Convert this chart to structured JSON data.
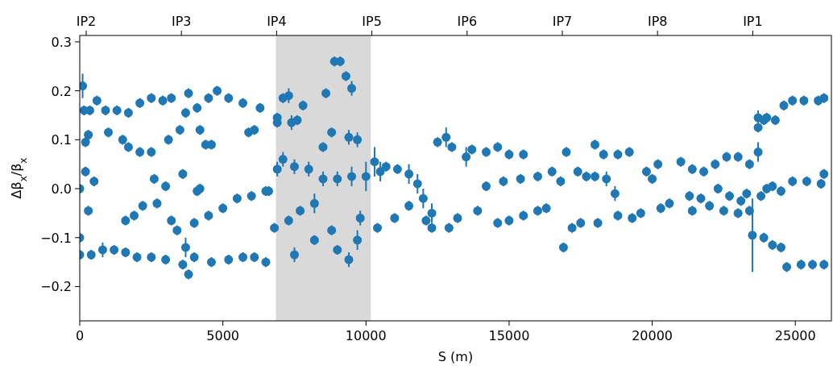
{
  "chart_data": {
    "type": "scatter",
    "xlabel": "S (m)",
    "ylabel": "Δβ$_{x}$/β$_{x}$",
    "xlim": [
      0,
      26260
    ],
    "xticks": [
      0,
      5000,
      10000,
      15000,
      20000,
      25000
    ],
    "ylim": [
      -0.27,
      0.313
    ],
    "yticks": [
      {
        "value": -0.2,
        "label": "−0.2"
      },
      {
        "value": -0.1,
        "label": "−0.1"
      },
      {
        "value": 0.0,
        "label": "0.0"
      },
      {
        "value": 0.1,
        "label": "0.1"
      },
      {
        "value": 0.2,
        "label": "0.2"
      },
      {
        "value": 0.3,
        "label": "0.3"
      }
    ],
    "annotations": [
      "IP2",
      "IP3",
      "IP4",
      "IP5",
      "IP6",
      "IP7",
      "IP8",
      "IP1"
    ],
    "bands": [
      {
        "axis": "x",
        "from": 6854,
        "to": 10169,
        "color": "#d9d9d9"
      }
    ],
    "grid": false,
    "marker": "circle",
    "series": [
      {
        "color": "#1f77b4",
        "x": [
          100,
          150,
          350,
          600,
          900,
          1300,
          1700,
          2100,
          2500,
          2900,
          3200,
          3800,
          4500,
          4800,
          5200,
          5700,
          6300,
          6900,
          7100,
          7300,
          7800,
          8600,
          8900,
          9100,
          9300,
          9500,
          200,
          300,
          1000,
          1500,
          1700,
          2100,
          2500,
          3100,
          3500,
          3700,
          4100,
          4200,
          4400,
          4600,
          5900,
          6100,
          6900,
          7400,
          7600,
          8500,
          8800,
          9400,
          9700,
          0,
          200,
          500,
          2600,
          3000,
          3600,
          4100,
          4200,
          6500,
          6900,
          7100,
          7500,
          8000,
          8500,
          9000,
          9500,
          10000,
          10500,
          300,
          1600,
          1900,
          2200,
          2700,
          3200,
          3400,
          3700,
          4000,
          4500,
          5000,
          5500,
          6000,
          6600,
          6800,
          7300,
          7700,
          8200,
          8800,
          9800,
          0,
          0,
          400,
          800,
          1200,
          1600,
          2000,
          2500,
          3000,
          3600,
          3800,
          4000,
          4600,
          5200,
          5700,
          6100,
          6500,
          7500,
          8200,
          9000,
          9400,
          9700,
          10300,
          10700,
          11100,
          11500,
          11800,
          12000,
          12300,
          12500,
          12800,
          13000,
          13200,
          12900,
          11000,
          10400,
          11500,
          12100,
          12300,
          13500,
          13700,
          14200,
          14600,
          15000,
          15500,
          13900,
          14200,
          14600,
          15000,
          15500,
          16000,
          16300,
          14800,
          15400,
          16000,
          16500,
          16800,
          17000,
          17200,
          17500,
          16900,
          17400,
          17700,
          18000,
          18300,
          18800,
          19200,
          18000,
          18400,
          18700,
          18100,
          18800,
          19300,
          19600,
          19800,
          20000,
          20200,
          20300,
          20600,
          21000,
          21400,
          21800,
          22200,
          22600,
          23000,
          23400,
          21300,
          21700,
          22300,
          22700,
          23100,
          23300,
          21400,
          22000,
          22500,
          23000,
          23400,
          23500,
          23700,
          23700,
          23700,
          23900,
          24000,
          24300,
          24600,
          24900,
          25300,
          25800,
          26000,
          23900,
          24200,
          24500,
          24700,
          25200,
          25600,
          26000,
          24200,
          24500,
          24900,
          25400,
          25900,
          26000,
          23800,
          24000
        ],
        "values": [
          0.21,
          0.16,
          0.16,
          0.18,
          0.16,
          0.16,
          0.155,
          0.175,
          0.185,
          0.18,
          0.185,
          0.195,
          0.185,
          0.2,
          0.185,
          0.175,
          0.165,
          0.145,
          0.185,
          0.19,
          0.17,
          0.195,
          0.26,
          0.26,
          0.23,
          0.205,
          0.095,
          0.11,
          0.115,
          0.1,
          0.085,
          0.075,
          0.075,
          0.1,
          0.12,
          0.155,
          0.165,
          0.12,
          0.09,
          0.09,
          0.115,
          0.12,
          0.135,
          0.135,
          0.14,
          0.085,
          0.115,
          0.105,
          0.1,
          0.0,
          0.035,
          0.015,
          0.02,
          0.005,
          0.03,
          -0.005,
          0.0,
          -0.005,
          0.04,
          0.06,
          0.045,
          0.04,
          0.02,
          0.02,
          0.025,
          0.025,
          0.035,
          -0.045,
          -0.065,
          -0.055,
          -0.035,
          -0.03,
          -0.065,
          -0.085,
          -0.12,
          -0.07,
          -0.055,
          -0.04,
          -0.02,
          -0.015,
          -0.005,
          -0.08,
          -0.065,
          -0.045,
          -0.03,
          -0.085,
          -0.06,
          -0.1,
          -0.135,
          -0.135,
          -0.125,
          -0.125,
          -0.13,
          -0.14,
          -0.14,
          -0.145,
          -0.155,
          -0.175,
          -0.14,
          -0.15,
          -0.145,
          -0.14,
          -0.14,
          -0.15,
          -0.135,
          -0.105,
          -0.125,
          -0.145,
          -0.105,
          0.055,
          0.045,
          0.04,
          0.03,
          0.01,
          -0.02,
          -0.05,
          0.095,
          0.105,
          0.085,
          -0.06,
          -0.08,
          -0.06,
          -0.08,
          -0.035,
          -0.065,
          -0.08,
          0.065,
          0.08,
          0.075,
          0.085,
          0.07,
          0.07,
          -0.045,
          0.005,
          -0.07,
          -0.065,
          -0.055,
          -0.045,
          -0.04,
          0.015,
          0.02,
          0.025,
          0.035,
          0.015,
          0.075,
          -0.08,
          -0.07,
          -0.12,
          0.035,
          0.025,
          0.09,
          0.07,
          0.07,
          0.075,
          0.025,
          0.02,
          -0.01,
          -0.07,
          -0.055,
          -0.06,
          -0.05,
          0.035,
          0.02,
          0.05,
          -0.04,
          -0.03,
          0.055,
          0.04,
          0.035,
          0.05,
          0.065,
          0.065,
          0.05,
          -0.015,
          -0.02,
          0.0,
          -0.015,
          -0.025,
          -0.01,
          -0.045,
          -0.035,
          -0.045,
          -0.05,
          -0.045,
          -0.095,
          0.145,
          0.125,
          0.075,
          0.14,
          0.145,
          0.14,
          0.17,
          0.18,
          0.18,
          0.18,
          0.185,
          -0.1,
          -0.115,
          -0.12,
          -0.16,
          -0.155,
          -0.155,
          -0.155,
          0.005,
          -0.005,
          0.015,
          0.015,
          0.01,
          0.03,
          -0.015,
          0.0
        ],
        "errors": [
          0.025,
          0.01,
          0.01,
          0.01,
          0.01,
          0.01,
          0.01,
          0.01,
          0.01,
          0.01,
          0.01,
          0.01,
          0.01,
          0.01,
          0.01,
          0.01,
          0.01,
          0.01,
          0.01,
          0.015,
          0.01,
          0.01,
          0.01,
          0.01,
          0.01,
          0.015,
          0.01,
          0.01,
          0.01,
          0.01,
          0.01,
          0.01,
          0.01,
          0.01,
          0.01,
          0.01,
          0.01,
          0.01,
          0.01,
          0.01,
          0.01,
          0.01,
          0.01,
          0.015,
          0.01,
          0.01,
          0.01,
          0.015,
          0.015,
          0.01,
          0.01,
          0.01,
          0.01,
          0.01,
          0.01,
          0.01,
          0.01,
          0.01,
          0.015,
          0.015,
          0.015,
          0.015,
          0.015,
          0.015,
          0.02,
          0.03,
          0.02,
          0.01,
          0.01,
          0.01,
          0.01,
          0.01,
          0.01,
          0.01,
          0.02,
          0.01,
          0.01,
          0.01,
          0.01,
          0.01,
          0.01,
          0.01,
          0.01,
          0.01,
          0.02,
          0.01,
          0.015,
          0.01,
          0.01,
          0.01,
          0.015,
          0.01,
          0.01,
          0.01,
          0.01,
          0.01,
          0.01,
          0.01,
          0.01,
          0.01,
          0.01,
          0.01,
          0.01,
          0.01,
          0.015,
          0.01,
          0.01,
          0.015,
          0.02,
          0.03,
          0.01,
          0.01,
          0.02,
          0.02,
          0.02,
          0.02,
          0.01,
          0.02,
          0.01,
          0.01,
          0.01,
          0.01,
          0.01,
          0.01,
          0.01,
          0.01,
          0.02,
          0.01,
          0.01,
          0.01,
          0.01,
          0.01,
          0.01,
          0.01,
          0.01,
          0.01,
          0.01,
          0.01,
          0.01,
          0.01,
          0.01,
          0.01,
          0.01,
          0.01,
          0.01,
          0.01,
          0.01,
          0.01,
          0.01,
          0.01,
          0.01,
          0.01,
          0.01,
          0.01,
          0.01,
          0.015,
          0.015,
          0.01,
          0.01,
          0.01,
          0.01,
          0.01,
          0.01,
          0.01,
          0.01,
          0.01,
          0.01,
          0.01,
          0.01,
          0.01,
          0.01,
          0.01,
          0.01,
          0.01,
          0.01,
          0.01,
          0.01,
          0.01,
          0.01,
          0.01,
          0.01,
          0.01,
          0.01,
          0.01,
          0.075,
          0.015,
          0.01,
          0.02,
          0.01,
          0.01,
          0.01,
          0.01,
          0.01,
          0.01,
          0.01,
          0.01,
          0.01,
          0.01,
          0.01,
          0.01,
          0.01,
          0.01,
          0.01,
          0.01,
          0.01,
          0.01,
          0.01,
          0.01,
          0.01,
          0.01,
          0.01
        ]
      }
    ]
  }
}
